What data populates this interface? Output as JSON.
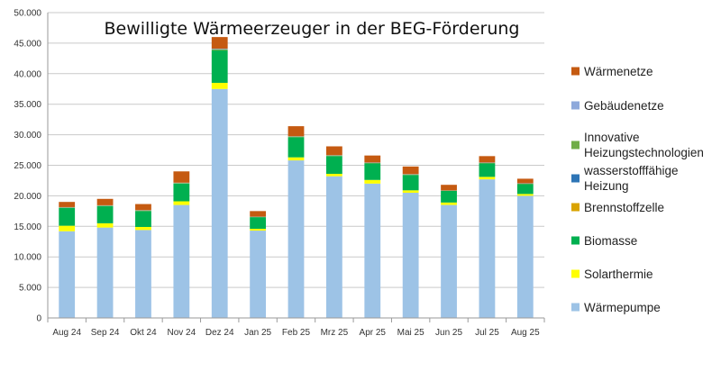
{
  "chart_data": {
    "type": "bar",
    "stacked": true,
    "title": "Bewilligte Wärmeerzeuger in der BEG-Förderung",
    "xlabel": "",
    "ylabel": "",
    "ylim": [
      0,
      50000
    ],
    "ytick_labels": [
      "0",
      "5.000",
      "10.000",
      "15.000",
      "20.000",
      "25.000",
      "30.000",
      "35.000",
      "40.000",
      "45.000",
      "50.000"
    ],
    "grid": true,
    "legend_position": "right",
    "categories": [
      "Aug 24",
      "Sep 24",
      "Okt 24",
      "Nov 24",
      "Dez 24",
      "Jan 25",
      "Feb 25",
      "Mrz 25",
      "Apr 25",
      "Mai 25",
      "Jun 25",
      "Jul 25",
      "Aug 25"
    ],
    "series": [
      {
        "name": "Wärmepumpe",
        "color": "#9DC3E6",
        "values": [
          14200,
          14800,
          14400,
          18500,
          37500,
          14300,
          25800,
          23200,
          22000,
          20500,
          18500,
          22700,
          20000
        ]
      },
      {
        "name": "Solarthermie",
        "color": "#FFFF00",
        "values": [
          900,
          700,
          500,
          600,
          1000,
          300,
          500,
          400,
          600,
          400,
          400,
          400,
          300
        ]
      },
      {
        "name": "Biomasse",
        "color": "#00B050",
        "values": [
          2900,
          2800,
          2600,
          2900,
          5300,
          1900,
          3300,
          2900,
          2700,
          2500,
          1900,
          2200,
          1600
        ]
      },
      {
        "name": "Brennstoffzelle",
        "color": "#D9A300",
        "values": [
          0,
          0,
          0,
          0,
          0,
          0,
          0,
          0,
          0,
          0,
          0,
          0,
          0
        ]
      },
      {
        "name": "wasserstofffähige Heizung",
        "color": "#2E75B6",
        "values": [
          0,
          0,
          0,
          0,
          0,
          0,
          0,
          0,
          0,
          0,
          0,
          0,
          0
        ]
      },
      {
        "name": "Innovative Heizungstechnologien",
        "color": "#70AD47",
        "values": [
          100,
          100,
          100,
          100,
          200,
          50,
          100,
          100,
          100,
          100,
          50,
          100,
          100
        ]
      },
      {
        "name": "Gebäudenetze",
        "color": "#8EA9DB",
        "values": [
          50,
          50,
          50,
          50,
          100,
          30,
          50,
          50,
          50,
          50,
          30,
          50,
          50
        ]
      },
      {
        "name": "Wärmenetze",
        "color": "#C55A11",
        "values": [
          850,
          1050,
          1000,
          1850,
          1900,
          920,
          1650,
          1450,
          1150,
          1250,
          920,
          1050,
          750
        ]
      }
    ],
    "legend_order": [
      "Wärmenetze",
      "Gebäudenetze",
      "Innovative Heizungstechnologien",
      "wasserstofffähige Heizung",
      "Brennstoffzelle",
      "Biomasse",
      "Solarthermie",
      "Wärmepumpe"
    ]
  }
}
